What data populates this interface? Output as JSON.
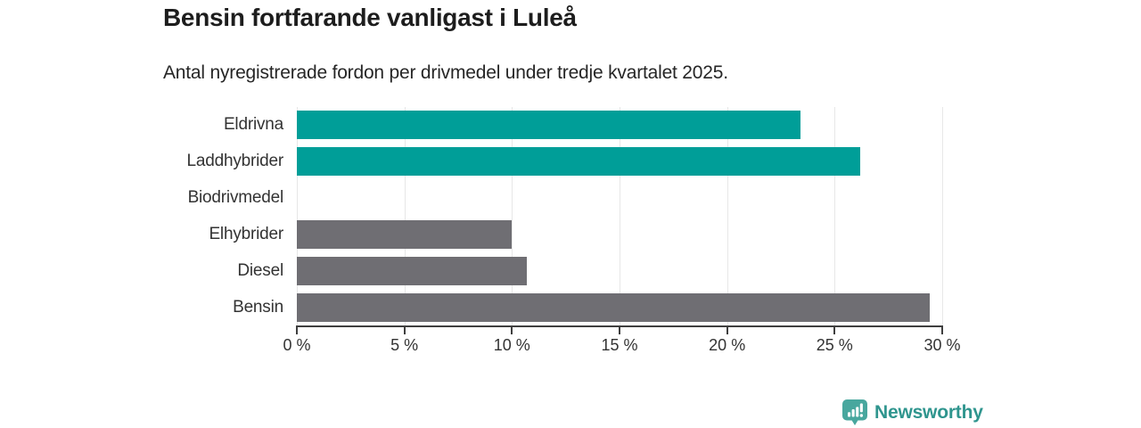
{
  "chart": {
    "title": "Bensin fortfarande vanligast i Luleå",
    "subtitle": "Antal nyregistrerade fordon per drivmedel under tredje kvartalet 2025."
  },
  "chart_data": {
    "type": "bar",
    "orientation": "horizontal",
    "title": "Bensin fortfarande vanligast i Luleå",
    "subtitle": "Antal nyregistrerade fordon per drivmedel under tredje kvartalet 2025.",
    "categories": [
      "Eldrivna",
      "Laddhybrider",
      "Biodrivmedel",
      "Elhybrider",
      "Diesel",
      "Bensin"
    ],
    "values": [
      23.4,
      26.2,
      0,
      10.0,
      10.7,
      29.4
    ],
    "unit": "%",
    "bar_colors": [
      "#009e98",
      "#009e98",
      "#6f6e73",
      "#6f6e73",
      "#6f6e73",
      "#6f6e73"
    ],
    "xlabel": "",
    "ylabel": "",
    "xlim": [
      0,
      30
    ],
    "x_ticks": [
      0,
      5,
      10,
      15,
      20,
      25,
      30
    ],
    "x_tick_suffix": " %",
    "grid": "vertical",
    "legend": "none"
  },
  "footer": {
    "brand": "Newsworthy"
  },
  "colors": {
    "accent_teal": "#009e98",
    "bar_gray": "#6f6e73",
    "brand_teal": "#2f958e",
    "brand_icon_teal": "#48a79e",
    "grid": "#e7e7e7",
    "axis": "#3f3f3f",
    "text_dark": "#1d1d1d",
    "text_body": "#333333"
  }
}
